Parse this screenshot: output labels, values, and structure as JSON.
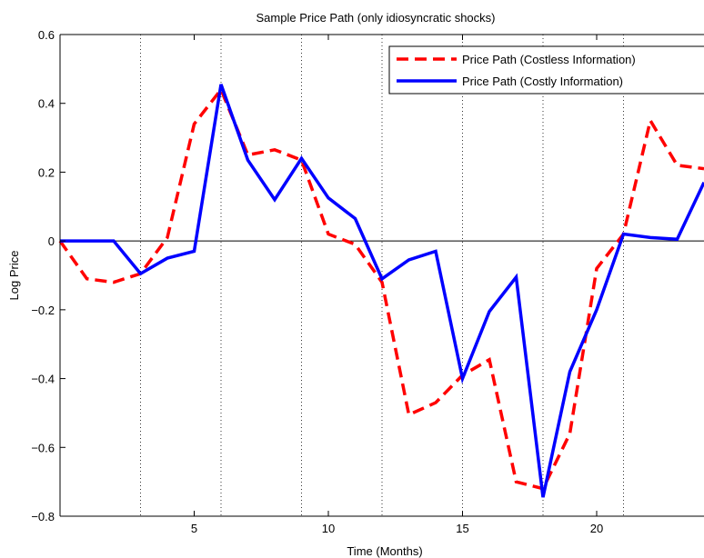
{
  "chart_data": {
    "type": "line",
    "title": "Sample Price Path (only idiosyncratic shocks)",
    "xlabel": "Time (Months)",
    "ylabel": "Log Price",
    "xlim": [
      0,
      24
    ],
    "ylim": [
      -0.8,
      0.6
    ],
    "xticks": [
      5,
      10,
      15,
      20
    ],
    "yticks": [
      -0.8,
      -0.6,
      -0.4,
      -0.2,
      0,
      0.2,
      0.4,
      0.6
    ],
    "ytick_labels": [
      "−0.8",
      "−0.6",
      "−0.4",
      "−0.2",
      "0",
      "0.2",
      "0.4",
      "0.6"
    ],
    "xtick_labels": [
      "5",
      "10",
      "15",
      "20"
    ],
    "vertical_dotted_lines_x": [
      3,
      6,
      9,
      12,
      15,
      18,
      21
    ],
    "zero_line": true,
    "grid": false,
    "legend_position": "top-right",
    "series": [
      {
        "name": "Price Path (Costless Information)",
        "color": "#ff0000",
        "style": "dashed",
        "x": [
          0,
          1,
          2,
          3,
          4,
          5,
          6,
          7,
          8,
          9,
          10,
          11,
          12,
          13,
          14,
          15,
          16,
          17,
          18,
          19,
          20,
          21,
          22,
          23,
          24
        ],
        "y": [
          0.0,
          -0.11,
          -0.12,
          -0.095,
          0.01,
          0.34,
          0.44,
          0.25,
          0.265,
          0.235,
          0.02,
          -0.01,
          -0.12,
          -0.505,
          -0.47,
          -0.39,
          -0.345,
          -0.7,
          -0.72,
          -0.56,
          -0.08,
          0.02,
          0.35,
          0.22,
          0.21
        ]
      },
      {
        "name": "Price Path (Costly Information)",
        "color": "#0000ff",
        "style": "solid",
        "x": [
          0,
          1,
          2,
          3,
          4,
          5,
          6,
          7,
          8,
          9,
          10,
          11,
          12,
          13,
          14,
          15,
          16,
          17,
          18,
          19,
          20,
          21,
          22,
          23,
          24
        ],
        "y": [
          0.0,
          0.0,
          0.0,
          -0.095,
          -0.05,
          -0.03,
          0.455,
          0.235,
          0.12,
          0.24,
          0.125,
          0.065,
          -0.11,
          -0.055,
          -0.03,
          -0.4,
          -0.205,
          -0.105,
          -0.745,
          -0.38,
          -0.2,
          0.02,
          0.01,
          0.005,
          0.17
        ]
      }
    ]
  }
}
